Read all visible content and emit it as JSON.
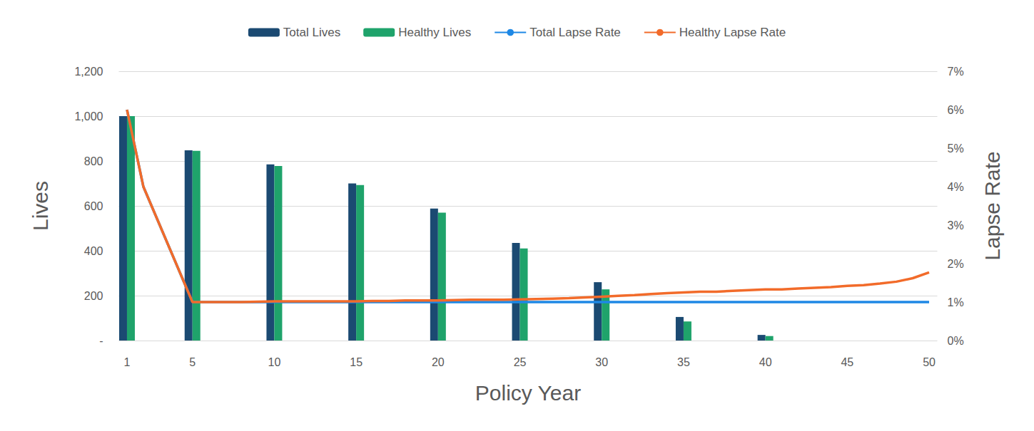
{
  "chart_data": {
    "type": "bar",
    "x_label": "Policy Year",
    "y_label": "Lives",
    "y2_label": "Lapse Rate",
    "categories": [
      1,
      null,
      null,
      null,
      5,
      null,
      null,
      null,
      null,
      10,
      null,
      null,
      null,
      null,
      15,
      null,
      null,
      null,
      null,
      20,
      null,
      null,
      null,
      null,
      25,
      null,
      null,
      null,
      null,
      30,
      null,
      null,
      null,
      null,
      35,
      null,
      null,
      null,
      null,
      40,
      null,
      null,
      null,
      null,
      45,
      null,
      null,
      null,
      null,
      50
    ],
    "ylim": [
      0,
      1200
    ],
    "yticks": [
      {
        "value": 0,
        "label": "-"
      },
      200,
      400,
      600,
      800,
      {
        "value": 1000,
        "label": "1,000"
      },
      {
        "value": 1200,
        "label": "1,200"
      }
    ],
    "y2lim": [
      0,
      7
    ],
    "y2ticks": [
      {
        "value": 0,
        "label": "0%"
      },
      {
        "value": 1,
        "label": "1%"
      },
      {
        "value": 2,
        "label": "2%"
      },
      {
        "value": 3,
        "label": "3%"
      },
      {
        "value": 4,
        "label": "4%"
      },
      {
        "value": 5,
        "label": "5%"
      },
      {
        "value": 6,
        "label": "6%"
      },
      {
        "value": 7,
        "label": "7%"
      }
    ],
    "grid": true,
    "legend": "top",
    "series": [
      {
        "name": "Total Lives",
        "type": "bar",
        "color": "#1b4a72",
        "values": [
          1000,
          null,
          null,
          null,
          848,
          null,
          null,
          null,
          null,
          785,
          null,
          null,
          null,
          null,
          700,
          null,
          null,
          null,
          null,
          588,
          null,
          null,
          null,
          null,
          435,
          null,
          null,
          null,
          null,
          260,
          null,
          null,
          null,
          null,
          105,
          null,
          null,
          null,
          null,
          25,
          null,
          null,
          null,
          null,
          null,
          null,
          null,
          null,
          null,
          null
        ]
      },
      {
        "name": "Healthy Lives",
        "type": "bar",
        "color": "#1fa36b",
        "values": [
          1000,
          null,
          null,
          null,
          845,
          null,
          null,
          null,
          null,
          778,
          null,
          null,
          null,
          null,
          693,
          null,
          null,
          null,
          null,
          570,
          null,
          null,
          null,
          null,
          410,
          null,
          null,
          null,
          null,
          228,
          null,
          null,
          null,
          null,
          85,
          null,
          null,
          null,
          null,
          20,
          null,
          null,
          null,
          null,
          null,
          null,
          null,
          null,
          null,
          null
        ]
      },
      {
        "name": "Total Lapse Rate",
        "type": "line",
        "axis": "y2",
        "color": "#1e88e5",
        "values": [
          6,
          4,
          3,
          2,
          1,
          1,
          1,
          1,
          1,
          1,
          1,
          1,
          1,
          1,
          1,
          1,
          1,
          1,
          1,
          1,
          1,
          1,
          1,
          1,
          1,
          1,
          1,
          1,
          1,
          1,
          1,
          1,
          1,
          1,
          1,
          1,
          1,
          1,
          1,
          1,
          1,
          1,
          1,
          1,
          1,
          1,
          1,
          1,
          1,
          1
        ]
      },
      {
        "name": "Healthy Lapse Rate",
        "type": "line",
        "axis": "y2",
        "color": "#f26b2a",
        "values": [
          6,
          4,
          3,
          2,
          1,
          1,
          1,
          1,
          1.01,
          1.02,
          1.02,
          1.02,
          1.02,
          1.02,
          1.02,
          1.03,
          1.03,
          1.04,
          1.04,
          1.04,
          1.05,
          1.06,
          1.06,
          1.06,
          1.07,
          1.08,
          1.09,
          1.1,
          1.12,
          1.14,
          1.16,
          1.18,
          1.21,
          1.23,
          1.25,
          1.27,
          1.27,
          1.29,
          1.31,
          1.33,
          1.33,
          1.35,
          1.37,
          1.39,
          1.42,
          1.44,
          1.48,
          1.53,
          1.62,
          1.77
        ]
      }
    ]
  }
}
